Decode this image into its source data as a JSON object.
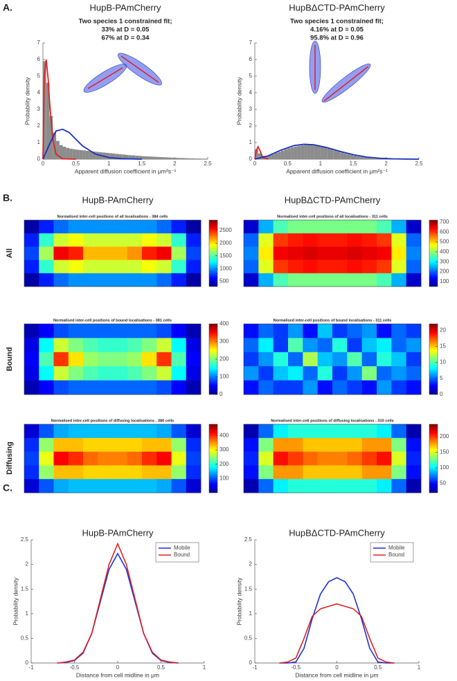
{
  "panels": [
    {
      "label": "A."
    },
    {
      "label": "B.",
      "column_titles": [
        "HupB-PAmCherry",
        "HupBΔCTD-PAmCherry"
      ],
      "row_labels": [
        "All",
        "Bound",
        "Diffusing"
      ]
    },
    {
      "label": "C."
    }
  ],
  "chart_data": [
    {
      "type": "histogram",
      "title": "HupB-PAmCherry",
      "subtitle": [
        "Two species 1 constrained fit;",
        "33% at D = 0.05",
        "67% at D = 0.34"
      ],
      "xlabel": "Apparent diffusion coefficient in μm²s⁻¹",
      "ylabel": "Probability density",
      "color": "#8c8c8c",
      "bins": [
        0,
        0.05,
        0.1,
        0.15,
        0.2,
        0.25,
        0.3,
        0.35,
        0.4,
        0.45,
        0.5,
        0.55,
        0.6,
        0.65,
        0.7,
        0.75,
        0.8,
        0.85,
        0.9,
        0.95,
        1,
        1.05,
        1.1,
        1.15,
        1.2,
        1.25,
        1.3,
        1.35,
        1.4,
        1.45,
        1.5,
        1.55,
        1.6,
        1.65,
        1.7,
        1.75,
        1.8,
        1.85,
        1.9,
        1.95,
        2,
        2.05,
        2.1,
        2.15,
        2.2,
        2.25,
        2.3,
        2.35,
        2.4,
        2.45,
        2.5
      ],
      "values": [
        5.9,
        4.6,
        2.6,
        1.6,
        1.1,
        0.85,
        0.75,
        0.68,
        0.63,
        0.6,
        0.57,
        0.55,
        0.53,
        0.5,
        0.48,
        0.46,
        0.44,
        0.42,
        0.4,
        0.38,
        0.36,
        0.34,
        0.32,
        0.3,
        0.28,
        0.26,
        0.24,
        0.23,
        0.21,
        0.2,
        0.18,
        0.17,
        0.16,
        0.15,
        0.14,
        0.13,
        0.12,
        0.11,
        0.1,
        0.09,
        0.08,
        0.07,
        0.07,
        0.06,
        0.05,
        0.05,
        0.04,
        0.04,
        0.03,
        0.03
      ],
      "curves": [
        {
          "color": "#e02020",
          "x": [
            0,
            0.02,
            0.05,
            0.08,
            0.1,
            0.15,
            0.2,
            0.3,
            0.5
          ],
          "values": [
            0,
            5,
            6,
            4.8,
            3.5,
            1.2,
            0.3,
            0.02,
            0
          ]
        },
        {
          "color": "#1a2fbf",
          "x": [
            0,
            0.1,
            0.2,
            0.3,
            0.4,
            0.5,
            0.6,
            0.8,
            1,
            1.2,
            1.5
          ],
          "values": [
            0,
            0.9,
            1.7,
            1.8,
            1.6,
            1.2,
            0.8,
            0.3,
            0.1,
            0.03,
            0
          ]
        }
      ],
      "xlim": [
        0,
        2.5
      ],
      "xticks": [
        0,
        0.5,
        1,
        1.5,
        2,
        2.5
      ],
      "ylim": [
        0,
        7
      ],
      "yticks": [
        0,
        1,
        2,
        3,
        4,
        5,
        6,
        7
      ]
    },
    {
      "type": "histogram",
      "title": "HupBΔCTD-PAmCherry",
      "subtitle": [
        "Two species 1 constrained fit;",
        "4.16% at D = 0.05",
        "95.8% at D = 0.96"
      ],
      "xlabel": "Apparent diffusion coefficient in μm²s⁻¹",
      "ylabel": "Probability density",
      "color": "#8c8c8c",
      "bins": [
        0,
        0.05,
        0.1,
        0.15,
        0.2,
        0.25,
        0.3,
        0.35,
        0.4,
        0.45,
        0.5,
        0.55,
        0.6,
        0.65,
        0.7,
        0.75,
        0.8,
        0.85,
        0.9,
        0.95,
        1,
        1.05,
        1.1,
        1.15,
        1.2,
        1.25,
        1.3,
        1.35,
        1.4,
        1.45,
        1.5,
        1.55,
        1.6,
        1.65,
        1.7,
        1.75,
        1.8,
        1.85,
        1.9,
        1.95,
        2,
        2.05,
        2.1,
        2.15,
        2.2,
        2.25,
        2.3,
        2.35,
        2.4,
        2.45,
        2.5
      ],
      "values": [
        0.6,
        0.35,
        0.2,
        0.2,
        0.25,
        0.3,
        0.38,
        0.45,
        0.52,
        0.6,
        0.66,
        0.72,
        0.76,
        0.8,
        0.84,
        0.86,
        0.87,
        0.86,
        0.84,
        0.8,
        0.76,
        0.7,
        0.64,
        0.58,
        0.52,
        0.46,
        0.4,
        0.35,
        0.3,
        0.25,
        0.21,
        0.17,
        0.14,
        0.11,
        0.09,
        0.07,
        0.05,
        0.04,
        0.03,
        0.02,
        0.02,
        0.01,
        0.01,
        0.01,
        0.01,
        0,
        0,
        0,
        0,
        0
      ],
      "curves": [
        {
          "color": "#e02020",
          "x": [
            0,
            0.02,
            0.05,
            0.08,
            0.12,
            0.2
          ],
          "values": [
            0,
            0.5,
            0.75,
            0.5,
            0.1,
            0
          ]
        },
        {
          "color": "#1a2fbf",
          "x": [
            0,
            0.2,
            0.4,
            0.6,
            0.75,
            0.9,
            1.1,
            1.3,
            1.5,
            1.7,
            1.9,
            2.1,
            2.3,
            2.5
          ],
          "values": [
            0,
            0.2,
            0.55,
            0.82,
            0.9,
            0.87,
            0.7,
            0.47,
            0.27,
            0.13,
            0.06,
            0.02,
            0.01,
            0
          ]
        }
      ],
      "xlim": [
        0,
        2.5
      ],
      "xticks": [
        0,
        0.5,
        1,
        1.5,
        2,
        2.5
      ],
      "ylim": [
        0,
        7
      ],
      "yticks": [
        0,
        1,
        2,
        3,
        4,
        5,
        6,
        7
      ]
    },
    {
      "type": "heatmap",
      "title": "Normalised inter-cell positions of all localisations  - 384 cells",
      "colormap": "jet",
      "clim": [
        300,
        2900
      ],
      "cticks": [
        500,
        1000,
        1500,
        2000,
        2500
      ],
      "values": [
        [
          400,
          700,
          900,
          1000,
          1000,
          1000,
          1000,
          1000,
          1000,
          900,
          700,
          400
        ],
        [
          700,
          1400,
          1800,
          1900,
          1800,
          1800,
          1800,
          1800,
          1900,
          1800,
          1400,
          700
        ],
        [
          800,
          1700,
          2600,
          2500,
          2100,
          2100,
          2100,
          2200,
          2500,
          2600,
          1700,
          800
        ],
        [
          700,
          1400,
          1800,
          1900,
          1800,
          1800,
          1800,
          1800,
          1900,
          1800,
          1400,
          700
        ],
        [
          400,
          700,
          900,
          1000,
          1000,
          1000,
          1000,
          1000,
          1000,
          900,
          700,
          400
        ]
      ]
    },
    {
      "type": "heatmap",
      "title": "Normalised inter-cell positions of all localisations  - 311 cells",
      "colormap": "jet",
      "clim": [
        50,
        720
      ],
      "cticks": [
        100,
        200,
        300,
        400,
        500,
        600,
        700
      ],
      "values": [
        [
          100,
          250,
          350,
          380,
          380,
          380,
          380,
          380,
          380,
          350,
          250,
          100
        ],
        [
          200,
          450,
          600,
          620,
          630,
          620,
          620,
          630,
          620,
          600,
          450,
          200
        ],
        [
          220,
          480,
          640,
          650,
          660,
          650,
          650,
          660,
          650,
          640,
          480,
          220
        ],
        [
          200,
          450,
          600,
          620,
          630,
          620,
          620,
          630,
          620,
          600,
          450,
          200
        ],
        [
          100,
          250,
          350,
          380,
          380,
          380,
          380,
          380,
          380,
          350,
          250,
          100
        ]
      ]
    },
    {
      "type": "heatmap",
      "title": "Normalised inter-cell positions of bound localisations  - 381 cells",
      "colormap": "jet",
      "clim": [
        0,
        400
      ],
      "cticks": [
        0,
        100,
        200,
        300,
        400
      ],
      "values": [
        [
          20,
          50,
          80,
          90,
          90,
          90,
          90,
          90,
          90,
          80,
          50,
          20
        ],
        [
          40,
          150,
          230,
          200,
          180,
          170,
          170,
          180,
          200,
          230,
          150,
          40
        ],
        [
          50,
          180,
          330,
          260,
          210,
          200,
          200,
          210,
          260,
          330,
          180,
          50
        ],
        [
          40,
          150,
          230,
          200,
          180,
          170,
          170,
          180,
          200,
          230,
          150,
          40
        ],
        [
          20,
          50,
          80,
          90,
          90,
          90,
          90,
          90,
          90,
          80,
          50,
          20
        ]
      ]
    },
    {
      "type": "heatmap",
      "title": "Normalised inter-cell positions of bound localisations  - 311 cells",
      "colormap": "jet",
      "clim": [
        0,
        22
      ],
      "cticks": [
        0,
        5,
        10,
        15,
        20
      ],
      "values": [
        [
          3,
          5,
          4,
          6,
          3,
          7,
          4,
          5,
          6,
          3,
          5,
          4
        ],
        [
          5,
          8,
          4,
          10,
          6,
          5,
          9,
          4,
          7,
          8,
          5,
          6
        ],
        [
          4,
          6,
          9,
          5,
          12,
          7,
          6,
          10,
          5,
          9,
          7,
          4
        ],
        [
          6,
          4,
          7,
          8,
          5,
          9,
          4,
          6,
          11,
          5,
          6,
          5
        ],
        [
          3,
          5,
          4,
          4,
          6,
          3,
          5,
          4,
          3,
          6,
          4,
          3
        ]
      ]
    },
    {
      "type": "heatmap",
      "title": "Normalised inter-cell positions of diffusing localisations  - 380 cells",
      "colormap": "jet",
      "clim": [
        0,
        480
      ],
      "cticks": [
        100,
        200,
        300,
        400
      ],
      "values": [
        [
          40,
          100,
          140,
          150,
          150,
          150,
          150,
          150,
          150,
          140,
          100,
          40
        ],
        [
          80,
          250,
          330,
          330,
          320,
          320,
          320,
          320,
          330,
          330,
          250,
          80
        ],
        [
          90,
          290,
          420,
          400,
          370,
          360,
          360,
          370,
          400,
          420,
          290,
          90
        ],
        [
          80,
          250,
          330,
          330,
          320,
          320,
          320,
          320,
          330,
          330,
          250,
          80
        ],
        [
          40,
          100,
          140,
          150,
          150,
          150,
          150,
          150,
          150,
          140,
          100,
          40
        ]
      ]
    },
    {
      "type": "heatmap",
      "title": "Normalised inter-cell positions of diffusing localisations  - 310 cells",
      "colormap": "jet",
      "clim": [
        20,
        240
      ],
      "cticks": [
        50,
        100,
        150,
        200
      ],
      "values": [
        [
          30,
          70,
          100,
          110,
          110,
          110,
          110,
          110,
          110,
          100,
          70,
          30
        ],
        [
          50,
          130,
          180,
          180,
          170,
          170,
          170,
          170,
          180,
          180,
          130,
          50
        ],
        [
          55,
          150,
          210,
          200,
          190,
          185,
          185,
          190,
          200,
          210,
          150,
          55
        ],
        [
          50,
          130,
          180,
          180,
          170,
          170,
          170,
          170,
          180,
          180,
          130,
          50
        ],
        [
          30,
          70,
          100,
          110,
          110,
          110,
          110,
          110,
          110,
          100,
          70,
          30
        ]
      ]
    },
    {
      "type": "line",
      "title": "HupB-PAmCherry",
      "xlabel": "Distance from cell midline in μm",
      "ylabel": "Probability density",
      "legend": "top-right",
      "x": [
        -0.7,
        -0.6,
        -0.5,
        -0.4,
        -0.3,
        -0.2,
        -0.1,
        0,
        0.1,
        0.2,
        0.3,
        0.4,
        0.5,
        0.6,
        0.7
      ],
      "series": [
        {
          "name": "Mobile",
          "color": "#1a2fd8",
          "values": [
            0,
            0.01,
            0.05,
            0.2,
            0.6,
            1.25,
            1.9,
            2.22,
            1.9,
            1.25,
            0.6,
            0.2,
            0.05,
            0.01,
            0
          ]
        },
        {
          "name": "Bound",
          "color": "#e02020",
          "values": [
            0,
            0.02,
            0.06,
            0.22,
            0.6,
            1.3,
            2,
            2.42,
            2,
            1.3,
            0.6,
            0.22,
            0.06,
            0.02,
            0
          ]
        }
      ],
      "xlim": [
        -1,
        1
      ],
      "xticks": [
        -1,
        -0.5,
        0,
        0.5,
        1
      ],
      "ylim": [
        0,
        2.5
      ],
      "yticks": [
        0,
        0.5,
        1,
        1.5,
        2,
        2.5
      ]
    },
    {
      "type": "line",
      "title": "HupBΔCTD-PAmCherry",
      "xlabel": "Distance from cell midline in μm",
      "ylabel": "Probability density",
      "legend": "top-right",
      "x": [
        -0.7,
        -0.6,
        -0.5,
        -0.4,
        -0.3,
        -0.2,
        -0.1,
        0,
        0.1,
        0.2,
        0.3,
        0.4,
        0.5,
        0.6,
        0.7
      ],
      "series": [
        {
          "name": "Mobile",
          "color": "#1a2fd8",
          "values": [
            0,
            0,
            0.02,
            0.3,
            0.9,
            1.4,
            1.65,
            1.73,
            1.65,
            1.4,
            0.9,
            0.3,
            0.02,
            0,
            0
          ]
        },
        {
          "name": "Bound",
          "color": "#e02020",
          "values": [
            0,
            0.02,
            0.1,
            0.5,
            0.95,
            1.1,
            1.15,
            1.2,
            1.15,
            1.1,
            0.95,
            0.5,
            0.1,
            0.02,
            0
          ]
        }
      ],
      "xlim": [
        -1,
        1
      ],
      "xticks": [
        -1,
        -0.5,
        0,
        0.5,
        1
      ],
      "ylim": [
        0,
        2.5
      ],
      "yticks": [
        0,
        0.5,
        1,
        1.5,
        2,
        2.5
      ]
    }
  ]
}
